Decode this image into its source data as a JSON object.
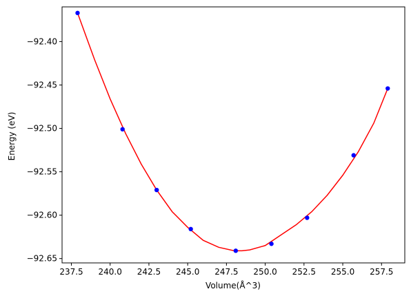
{
  "chart_data": {
    "type": "scatter",
    "title": "",
    "xlabel": "Volume(Å^3)",
    "ylabel": "Energy (eV)",
    "xlim": [
      236.9,
      259.0
    ],
    "ylim": [
      -92.655,
      -92.36
    ],
    "grid": false,
    "legend": "none",
    "xticks": [
      237.5,
      240.0,
      242.5,
      245.0,
      247.5,
      250.0,
      252.5,
      255.0,
      257.5
    ],
    "xtick_labels": [
      "237.5",
      "240.0",
      "242.5",
      "245.0",
      "247.5",
      "250.0",
      "252.5",
      "255.0",
      "257.5"
    ],
    "yticks": [
      -92.4,
      -92.45,
      -92.5,
      -92.55,
      -92.6,
      -92.65
    ],
    "ytick_labels": [
      "−92.40",
      "−92.45",
      "−92.50",
      "−92.55",
      "−92.60",
      "−92.65"
    ],
    "series": [
      {
        "kind": "scatter",
        "color": "#0000ff",
        "x": [
          237.9,
          240.8,
          243.0,
          245.2,
          248.1,
          250.4,
          252.7,
          255.7,
          257.9
        ],
        "y": [
          -92.367,
          -92.501,
          -92.571,
          -92.616,
          -92.641,
          -92.633,
          -92.603,
          -92.531,
          -92.454
        ]
      },
      {
        "kind": "line",
        "color": "#ff0000",
        "x": [
          237.9,
          239.0,
          240.0,
          241.0,
          242.0,
          243.0,
          244.0,
          245.0,
          246.0,
          247.0,
          248.0,
          248.5,
          249.0,
          250.0,
          251.0,
          252.0,
          253.0,
          254.0,
          255.0,
          256.0,
          257.0,
          257.9
        ],
        "y": [
          -92.367,
          -92.421,
          -92.466,
          -92.506,
          -92.541,
          -92.571,
          -92.596,
          -92.614,
          -92.629,
          -92.637,
          -92.641,
          -92.641,
          -92.64,
          -92.635,
          -92.623,
          -92.611,
          -92.596,
          -92.577,
          -92.554,
          -92.527,
          -92.494,
          -92.454
        ]
      }
    ]
  }
}
